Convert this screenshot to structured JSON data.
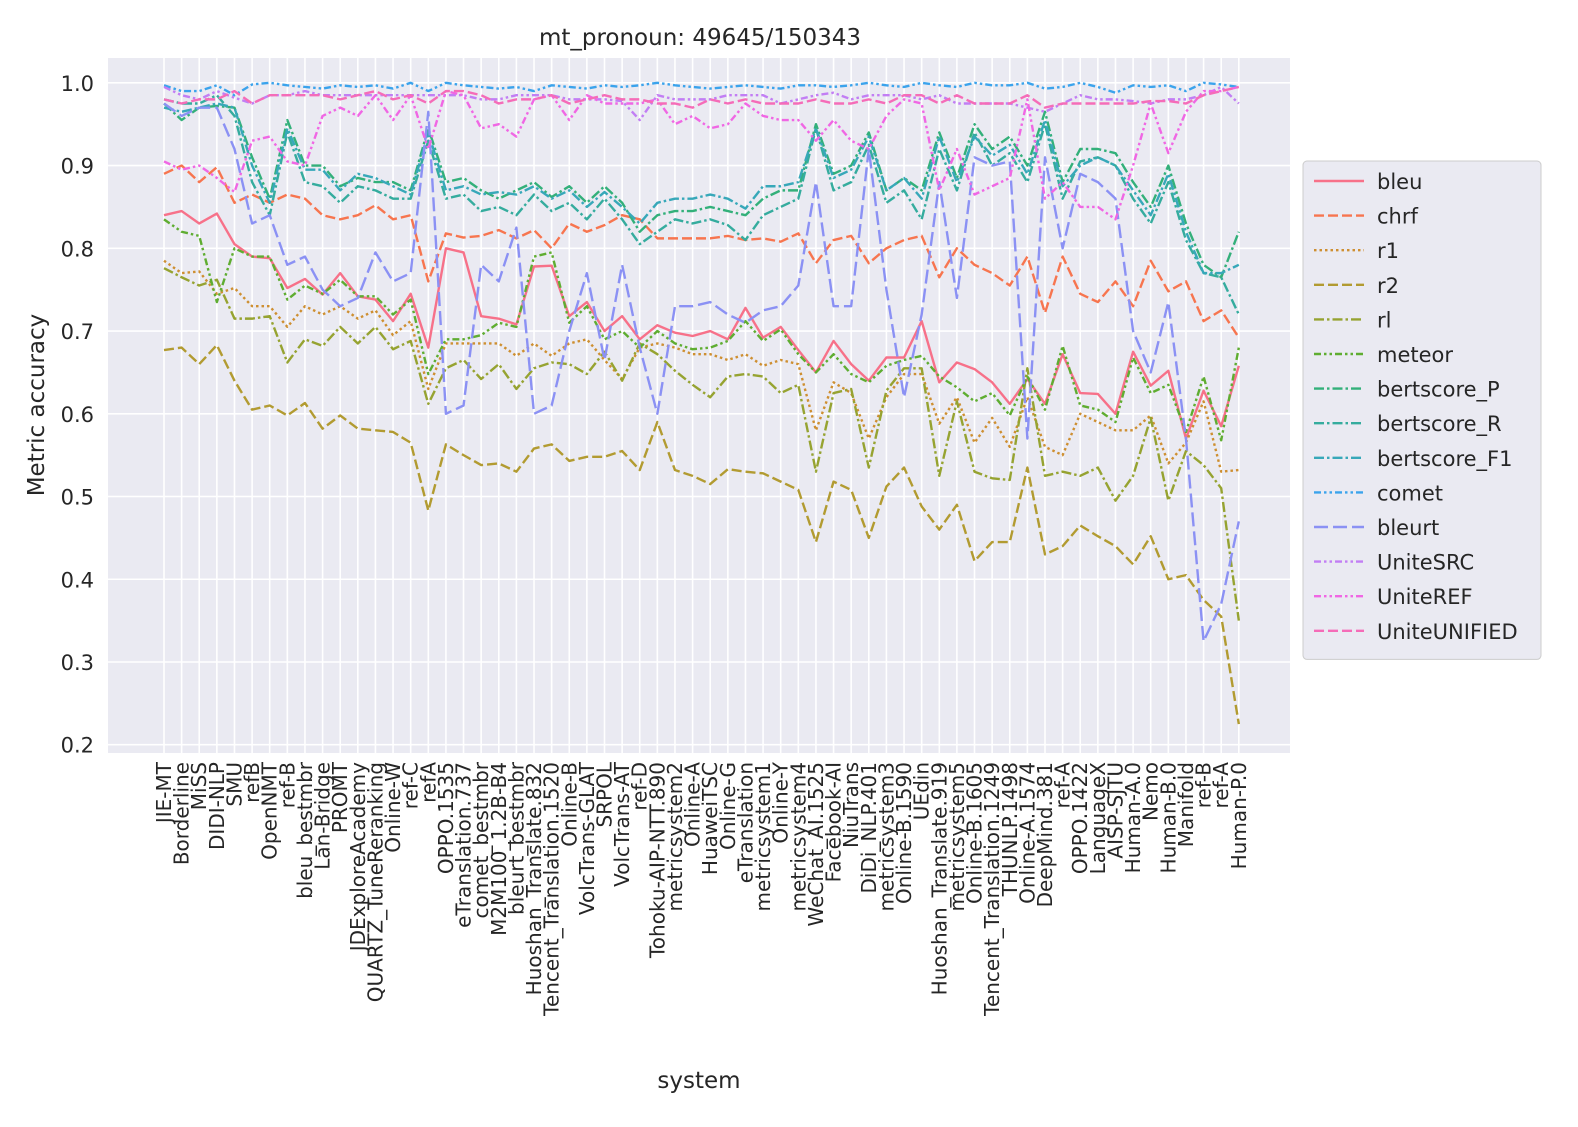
{
  "chart_data": {
    "type": "line",
    "title": "mt_pronoun: 49645/150343",
    "xlabel": "system",
    "ylabel": "Metric accuracy",
    "ylim": [
      0.19,
      1.03
    ],
    "yticks": [
      0.2,
      0.3,
      0.4,
      0.5,
      0.6,
      0.7,
      0.8,
      0.9,
      1.0
    ],
    "grid": true,
    "legend_position": "right",
    "categories": [
      "JIE-MT",
      "Borderline",
      "MiSS",
      "DIDI-NLP",
      "SMU",
      "refB",
      "OpenNMT",
      "ref-B",
      "bleu_bestmbr",
      "Lan-Bridge",
      "PROMT",
      "JDExploreAcademy",
      "QUARTZ_TuneReranking",
      "Online-W",
      "ref-C",
      "refA",
      "OPPO.1535",
      "eTranslation.737",
      "comet_bestmbr",
      "M2M100_1.2B-B4",
      "bleurt_bestmbr",
      "Huoshan_Translate.832",
      "Tencent_Translation.1520",
      "Online-B",
      "VolcTrans-GLAT",
      "SRPOL",
      "VolcTrans-AT",
      "ref-D",
      "Tohoku-AIP-NTT.890",
      "metricsystem2",
      "Online-A",
      "HuaweiTSC",
      "Online-G",
      "eTranslation",
      "metricsystem1",
      "Online-Y",
      "metricsystem4",
      "WeChat_AI.1525",
      "Facebook-AI",
      "NiuTrans",
      "DiDi_NLP.401",
      "metricsystem3",
      "Online-B.1590",
      "UEdin",
      "Huoshan_Translate.919",
      "metricsystem5",
      "Online-B.1605",
      "Tencent_Translation.1249",
      "THUNLP.1498",
      "Online-A.1574",
      "DeepMind.381",
      "ref-A",
      "OPPO.1422",
      "LanguageX",
      "AISP-SJTU",
      "Human-A.0",
      "Nemo",
      "Human-B.0",
      "Manifold",
      "ref-B",
      "ref-A",
      "Human-P.0"
    ],
    "series": [
      {
        "name": "bleu",
        "color": "#f77189",
        "dash": "solid",
        "values": [
          0.84,
          0.845,
          0.83,
          0.842,
          0.805,
          0.79,
          0.788,
          0.752,
          0.763,
          0.744,
          0.77,
          0.742,
          0.738,
          0.712,
          0.745,
          0.68,
          0.8,
          0.795,
          0.718,
          0.715,
          0.708,
          0.778,
          0.779,
          0.718,
          0.735,
          0.7,
          0.718,
          0.69,
          0.707,
          0.698,
          0.694,
          0.7,
          0.69,
          0.728,
          0.692,
          0.705,
          0.677,
          0.65,
          0.688,
          0.66,
          0.64,
          0.668,
          0.668,
          0.712,
          0.638,
          0.662,
          0.654,
          0.638,
          0.612,
          0.642,
          0.612,
          0.672,
          0.625,
          0.624,
          0.6,
          0.675,
          0.634,
          0.652,
          0.57,
          0.628,
          0.585,
          0.658
        ]
      },
      {
        "name": "chrf",
        "color": "#f7754f",
        "dash": "dash",
        "values": [
          0.89,
          0.9,
          0.88,
          0.898,
          0.855,
          0.865,
          0.855,
          0.865,
          0.86,
          0.84,
          0.835,
          0.84,
          0.852,
          0.835,
          0.84,
          0.76,
          0.818,
          0.813,
          0.815,
          0.822,
          0.812,
          0.822,
          0.8,
          0.83,
          0.82,
          0.828,
          0.84,
          0.835,
          0.812,
          0.812,
          0.812,
          0.812,
          0.815,
          0.81,
          0.812,
          0.808,
          0.818,
          0.782,
          0.81,
          0.815,
          0.782,
          0.8,
          0.81,
          0.815,
          0.765,
          0.8,
          0.78,
          0.77,
          0.755,
          0.79,
          0.722,
          0.79,
          0.745,
          0.735,
          0.76,
          0.73,
          0.785,
          0.748,
          0.76,
          0.712,
          0.725,
          0.692
        ]
      },
      {
        "name": "r1",
        "color": "#ce8f31",
        "dash": "dot",
        "values": [
          0.785,
          0.77,
          0.772,
          0.745,
          0.752,
          0.73,
          0.73,
          0.705,
          0.73,
          0.72,
          0.73,
          0.715,
          0.725,
          0.695,
          0.712,
          0.63,
          0.685,
          0.685,
          0.685,
          0.685,
          0.67,
          0.685,
          0.67,
          0.685,
          0.69,
          0.665,
          0.642,
          0.68,
          0.685,
          0.68,
          0.672,
          0.672,
          0.665,
          0.672,
          0.658,
          0.665,
          0.66,
          0.58,
          0.638,
          0.625,
          0.57,
          0.62,
          0.648,
          0.648,
          0.588,
          0.62,
          0.565,
          0.595,
          0.56,
          0.62,
          0.56,
          0.55,
          0.6,
          0.59,
          0.58,
          0.58,
          0.598,
          0.54,
          0.565,
          0.615,
          0.53,
          0.532
        ]
      },
      {
        "name": "r2",
        "color": "#b29b31",
        "dash": "dash",
        "values": [
          0.677,
          0.68,
          0.66,
          0.683,
          0.64,
          0.605,
          0.61,
          0.598,
          0.613,
          0.582,
          0.598,
          0.582,
          0.58,
          0.578,
          0.565,
          0.483,
          0.563,
          0.55,
          0.538,
          0.54,
          0.53,
          0.558,
          0.563,
          0.543,
          0.548,
          0.548,
          0.555,
          0.532,
          0.59,
          0.532,
          0.525,
          0.515,
          0.533,
          0.53,
          0.528,
          0.518,
          0.508,
          0.445,
          0.518,
          0.508,
          0.45,
          0.512,
          0.535,
          0.488,
          0.46,
          0.49,
          0.422,
          0.445,
          0.445,
          0.535,
          0.43,
          0.44,
          0.465,
          0.452,
          0.44,
          0.418,
          0.452,
          0.4,
          0.405,
          0.375,
          0.355,
          0.225
        ]
      },
      {
        "name": "rl",
        "color": "#96a331",
        "dash": "dashdot",
        "values": [
          0.776,
          0.765,
          0.755,
          0.762,
          0.715,
          0.715,
          0.718,
          0.662,
          0.69,
          0.682,
          0.705,
          0.685,
          0.705,
          0.678,
          0.688,
          0.612,
          0.655,
          0.665,
          0.642,
          0.66,
          0.63,
          0.655,
          0.662,
          0.66,
          0.648,
          0.675,
          0.64,
          0.685,
          0.672,
          0.652,
          0.635,
          0.62,
          0.645,
          0.648,
          0.645,
          0.625,
          0.635,
          0.53,
          0.625,
          0.63,
          0.535,
          0.628,
          0.655,
          0.655,
          0.525,
          0.615,
          0.53,
          0.522,
          0.52,
          0.655,
          0.525,
          0.53,
          0.525,
          0.535,
          0.495,
          0.525,
          0.595,
          0.495,
          0.555,
          0.538,
          0.51,
          0.35
        ]
      },
      {
        "name": "meteor",
        "color": "#5fad31",
        "dash": "dashdotdot",
        "values": [
          0.835,
          0.82,
          0.815,
          0.735,
          0.8,
          0.79,
          0.79,
          0.738,
          0.755,
          0.745,
          0.762,
          0.742,
          0.742,
          0.72,
          0.738,
          0.648,
          0.69,
          0.69,
          0.695,
          0.71,
          0.705,
          0.79,
          0.795,
          0.71,
          0.73,
          0.69,
          0.7,
          0.68,
          0.7,
          0.685,
          0.678,
          0.68,
          0.688,
          0.712,
          0.688,
          0.702,
          0.672,
          0.65,
          0.672,
          0.648,
          0.638,
          0.658,
          0.665,
          0.67,
          0.645,
          0.632,
          0.615,
          0.625,
          0.598,
          0.645,
          0.605,
          0.682,
          0.61,
          0.605,
          0.59,
          0.668,
          0.625,
          0.635,
          0.578,
          0.645,
          0.568,
          0.68
        ]
      },
      {
        "name": "bertscore_P",
        "color": "#33b07a",
        "dash": "dashdot",
        "values": [
          0.975,
          0.955,
          0.97,
          0.972,
          0.97,
          0.91,
          0.86,
          0.955,
          0.9,
          0.9,
          0.875,
          0.885,
          0.88,
          0.88,
          0.87,
          0.945,
          0.88,
          0.885,
          0.87,
          0.86,
          0.87,
          0.88,
          0.862,
          0.875,
          0.855,
          0.875,
          0.855,
          0.82,
          0.84,
          0.845,
          0.845,
          0.85,
          0.845,
          0.84,
          0.86,
          0.87,
          0.87,
          0.95,
          0.89,
          0.9,
          0.94,
          0.87,
          0.885,
          0.87,
          0.94,
          0.885,
          0.95,
          0.92,
          0.935,
          0.9,
          0.965,
          0.88,
          0.92,
          0.92,
          0.915,
          0.88,
          0.85,
          0.9,
          0.83,
          0.78,
          0.765,
          0.82
        ]
      },
      {
        "name": "bertscore_R",
        "color": "#35ac9e",
        "dash": "dashdot",
        "values": [
          0.98,
          0.975,
          0.975,
          0.985,
          0.96,
          0.88,
          0.84,
          0.94,
          0.88,
          0.875,
          0.855,
          0.875,
          0.87,
          0.86,
          0.86,
          0.93,
          0.86,
          0.865,
          0.845,
          0.85,
          0.84,
          0.865,
          0.845,
          0.855,
          0.835,
          0.86,
          0.835,
          0.805,
          0.82,
          0.835,
          0.83,
          0.835,
          0.828,
          0.81,
          0.84,
          0.85,
          0.86,
          0.945,
          0.87,
          0.88,
          0.925,
          0.855,
          0.87,
          0.835,
          0.92,
          0.87,
          0.94,
          0.9,
          0.915,
          0.88,
          0.95,
          0.86,
          0.905,
          0.91,
          0.9,
          0.86,
          0.83,
          0.88,
          0.81,
          0.77,
          0.765,
          0.72
        ]
      },
      {
        "name": "bertscore_F1",
        "color": "#37a8b9",
        "dash": "dashdot",
        "values": [
          0.97,
          0.965,
          0.97,
          0.975,
          0.97,
          0.9,
          0.855,
          0.945,
          0.895,
          0.895,
          0.87,
          0.89,
          0.885,
          0.875,
          0.865,
          0.94,
          0.87,
          0.875,
          0.865,
          0.868,
          0.865,
          0.875,
          0.86,
          0.87,
          0.85,
          0.868,
          0.85,
          0.83,
          0.855,
          0.86,
          0.86,
          0.865,
          0.86,
          0.848,
          0.875,
          0.875,
          0.88,
          0.945,
          0.885,
          0.895,
          0.935,
          0.87,
          0.885,
          0.86,
          0.935,
          0.88,
          0.935,
          0.912,
          0.925,
          0.89,
          0.955,
          0.875,
          0.9,
          0.91,
          0.9,
          0.87,
          0.84,
          0.89,
          0.82,
          0.77,
          0.77,
          0.78
        ]
      },
      {
        "name": "comet",
        "color": "#3ba3ec",
        "dash": "dashdotdot",
        "values": [
          0.997,
          0.99,
          0.99,
          0.997,
          0.985,
          0.998,
          1.0,
          0.997,
          0.995,
          0.993,
          0.997,
          0.995,
          0.997,
          0.993,
          1.0,
          0.99,
          1.0,
          0.997,
          0.995,
          0.993,
          0.995,
          0.99,
          0.997,
          0.995,
          0.993,
          0.997,
          0.995,
          0.997,
          1.0,
          0.997,
          0.995,
          0.993,
          0.995,
          0.997,
          0.995,
          0.993,
          0.997,
          0.997,
          0.995,
          0.997,
          1.0,
          0.997,
          0.995,
          1.0,
          0.997,
          0.995,
          1.0,
          0.997,
          0.997,
          1.0,
          0.993,
          0.995,
          1.0,
          0.995,
          0.988,
          0.997,
          0.995,
          0.997,
          0.99,
          1.0,
          0.998,
          0.995
        ]
      },
      {
        "name": "bleurt",
        "color": "#8b91f4",
        "dash": "longdash",
        "values": [
          0.975,
          0.96,
          0.97,
          0.97,
          0.92,
          0.83,
          0.84,
          0.78,
          0.79,
          0.75,
          0.73,
          0.74,
          0.795,
          0.76,
          0.77,
          0.965,
          0.6,
          0.61,
          0.78,
          0.76,
          0.825,
          0.6,
          0.61,
          0.7,
          0.77,
          0.665,
          0.78,
          0.68,
          0.6,
          0.73,
          0.73,
          0.735,
          0.72,
          0.71,
          0.725,
          0.73,
          0.755,
          0.88,
          0.73,
          0.73,
          0.92,
          0.75,
          0.62,
          0.72,
          0.88,
          0.74,
          0.91,
          0.9,
          0.905,
          0.57,
          0.91,
          0.8,
          0.89,
          0.88,
          0.86,
          0.7,
          0.65,
          0.735,
          0.57,
          0.325,
          0.37,
          0.47
        ]
      },
      {
        "name": "UniteSRC",
        "color": "#c27ef4",
        "dash": "dashdotdot",
        "values": [
          0.995,
          0.985,
          0.98,
          0.99,
          0.982,
          0.975,
          0.985,
          0.985,
          0.99,
          0.985,
          0.985,
          0.985,
          0.985,
          0.985,
          0.985,
          0.985,
          0.985,
          0.985,
          0.98,
          0.98,
          0.985,
          0.985,
          0.985,
          0.98,
          0.98,
          0.98,
          0.978,
          0.955,
          0.985,
          0.98,
          0.98,
          0.98,
          0.985,
          0.985,
          0.985,
          0.975,
          0.98,
          0.985,
          0.988,
          0.98,
          0.985,
          0.985,
          0.985,
          0.98,
          0.985,
          0.975,
          0.975,
          0.975,
          0.975,
          0.97,
          0.965,
          0.975,
          0.985,
          0.98,
          0.98,
          0.978,
          0.975,
          0.98,
          0.98,
          0.985,
          0.995,
          0.975
        ]
      },
      {
        "name": "UniteREF",
        "color": "#f067e4",
        "dash": "dashdotdot",
        "values": [
          0.905,
          0.895,
          0.9,
          0.885,
          0.868,
          0.93,
          0.935,
          0.905,
          0.9,
          0.96,
          0.97,
          0.96,
          0.985,
          0.955,
          0.985,
          0.92,
          0.99,
          0.985,
          0.945,
          0.95,
          0.935,
          0.98,
          0.985,
          0.955,
          0.985,
          0.975,
          0.975,
          0.975,
          0.98,
          0.95,
          0.96,
          0.945,
          0.95,
          0.975,
          0.96,
          0.955,
          0.955,
          0.93,
          0.955,
          0.93,
          0.92,
          0.96,
          0.98,
          0.975,
          0.87,
          0.92,
          0.865,
          0.875,
          0.885,
          0.98,
          0.86,
          0.88,
          0.85,
          0.85,
          0.835,
          0.9,
          0.975,
          0.915,
          0.965,
          0.99,
          0.99,
          0.995
        ]
      },
      {
        "name": "UniteUNIFIED",
        "color": "#f56cb8",
        "dash": "dash",
        "values": [
          0.98,
          0.975,
          0.98,
          0.98,
          0.99,
          0.975,
          0.985,
          0.985,
          0.985,
          0.985,
          0.98,
          0.985,
          0.99,
          0.98,
          0.985,
          0.975,
          0.99,
          0.99,
          0.985,
          0.975,
          0.98,
          0.98,
          0.985,
          0.975,
          0.98,
          0.985,
          0.98,
          0.98,
          0.975,
          0.975,
          0.97,
          0.98,
          0.975,
          0.98,
          0.975,
          0.975,
          0.975,
          0.98,
          0.975,
          0.975,
          0.98,
          0.975,
          0.985,
          0.985,
          0.975,
          0.985,
          0.975,
          0.975,
          0.975,
          0.985,
          0.97,
          0.975,
          0.975,
          0.975,
          0.975,
          0.975,
          0.978,
          0.978,
          0.975,
          0.985,
          0.99,
          0.995
        ]
      }
    ]
  }
}
